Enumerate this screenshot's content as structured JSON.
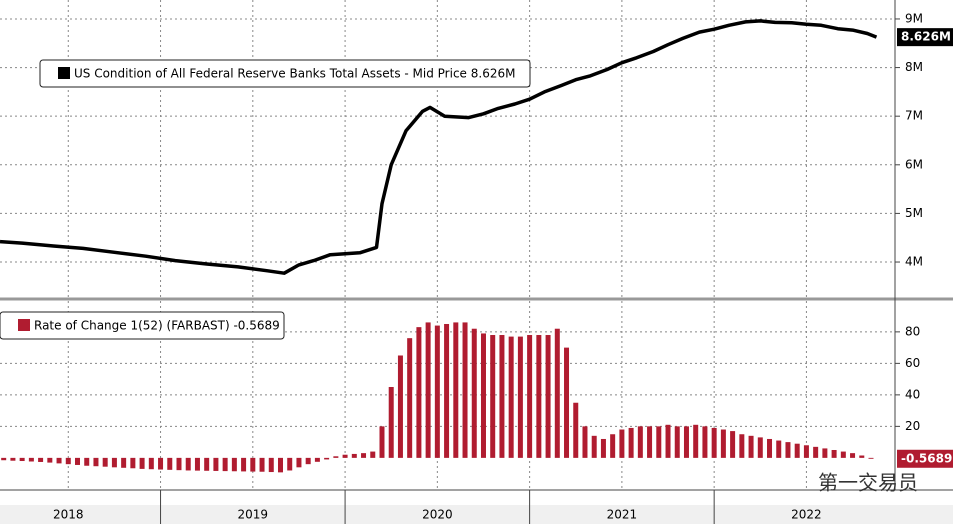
{
  "chart_data": [
    {
      "type": "line",
      "xlim": [
        2018.13,
        2022.98
      ],
      "ylim": [
        3.26,
        9.39
      ],
      "yticks": [
        {
          "value": 4,
          "label": "4M"
        },
        {
          "value": 5,
          "label": "5M"
        },
        {
          "value": 6,
          "label": "6M"
        },
        {
          "value": 7,
          "label": "7M"
        },
        {
          "value": 8,
          "label": "8M"
        },
        {
          "value": 9,
          "label": "9M"
        }
      ],
      "grid": true,
      "x": [
        2018.13,
        2018.25,
        2018.42,
        2018.58,
        2018.75,
        2018.92,
        2019.08,
        2019.25,
        2019.42,
        2019.58,
        2019.67,
        2019.75,
        2019.83,
        2019.92,
        2020.0,
        2020.08,
        2020.17,
        2020.2,
        2020.25,
        2020.33,
        2020.42,
        2020.46,
        2020.54,
        2020.67,
        2020.75,
        2020.83,
        2020.92,
        2021.0,
        2021.08,
        2021.17,
        2021.25,
        2021.33,
        2021.42,
        2021.5,
        2021.58,
        2021.67,
        2021.75,
        2021.83,
        2021.92,
        2022.0,
        2022.08,
        2022.17,
        2022.25,
        2022.33,
        2022.42,
        2022.5,
        2022.58,
        2022.67,
        2022.75,
        2022.83,
        2022.88
      ],
      "series": [
        {
          "name": "US Condition of All Federal Reserve Banks Total Assets - Mid Price 8.626M",
          "last_label": "8.626M",
          "color": "#000000",
          "values": [
            4.42,
            4.39,
            4.33,
            4.28,
            4.2,
            4.12,
            4.03,
            3.96,
            3.9,
            3.82,
            3.77,
            3.94,
            4.03,
            4.15,
            4.17,
            4.19,
            4.3,
            5.2,
            6.0,
            6.7,
            7.1,
            7.18,
            7.0,
            6.97,
            7.05,
            7.16,
            7.25,
            7.35,
            7.5,
            7.63,
            7.75,
            7.83,
            7.96,
            8.1,
            8.2,
            8.33,
            8.47,
            8.6,
            8.73,
            8.79,
            8.87,
            8.94,
            8.96,
            8.93,
            8.92,
            8.89,
            8.87,
            8.8,
            8.77,
            8.7,
            8.626
          ]
        }
      ]
    },
    {
      "type": "bar",
      "xlim": [
        2018.13,
        2022.98
      ],
      "ylim": [
        -20.4,
        99.6
      ],
      "yticks": [
        20,
        40,
        60,
        80
      ],
      "grid": true,
      "xticks": [
        {
          "value": 2018.5,
          "label": "2018"
        },
        {
          "value": 2019.5,
          "label": "2019"
        },
        {
          "value": 2020.5,
          "label": "2020"
        },
        {
          "value": 2021.5,
          "label": "2021"
        },
        {
          "value": 2022.5,
          "label": "2022"
        }
      ],
      "x": [
        2018.15,
        2018.2,
        2018.25,
        2018.3,
        2018.35,
        2018.4,
        2018.45,
        2018.5,
        2018.55,
        2018.6,
        2018.65,
        2018.7,
        2018.75,
        2018.8,
        2018.85,
        2018.9,
        2018.95,
        2019.0,
        2019.05,
        2019.1,
        2019.15,
        2019.2,
        2019.25,
        2019.3,
        2019.35,
        2019.4,
        2019.45,
        2019.5,
        2019.55,
        2019.6,
        2019.65,
        2019.7,
        2019.75,
        2019.8,
        2019.85,
        2019.9,
        2019.95,
        2020.0,
        2020.05,
        2020.1,
        2020.15,
        2020.2,
        2020.25,
        2020.3,
        2020.35,
        2020.4,
        2020.45,
        2020.5,
        2020.55,
        2020.6,
        2020.65,
        2020.7,
        2020.75,
        2020.8,
        2020.85,
        2020.9,
        2020.95,
        2021.0,
        2021.05,
        2021.1,
        2021.15,
        2021.2,
        2021.25,
        2021.3,
        2021.35,
        2021.4,
        2021.45,
        2021.5,
        2021.55,
        2021.6,
        2021.65,
        2021.7,
        2021.75,
        2021.8,
        2021.85,
        2021.9,
        2021.95,
        2022.0,
        2022.05,
        2022.1,
        2022.15,
        2022.2,
        2022.25,
        2022.3,
        2022.35,
        2022.4,
        2022.45,
        2022.5,
        2022.55,
        2022.6,
        2022.65,
        2022.7,
        2022.75,
        2022.8,
        2022.85
      ],
      "series": [
        {
          "name": "Rate of Change 1(52) (FARBAST) -0.5689",
          "last_label": "-0.5689",
          "color": "#b01c30",
          "values": [
            -1.5,
            -1.8,
            -2,
            -2.3,
            -2.6,
            -3,
            -3.5,
            -4,
            -4.5,
            -5,
            -5.3,
            -5.6,
            -6,
            -6.3,
            -6.6,
            -7,
            -7.2,
            -7.4,
            -7.6,
            -7.8,
            -8,
            -8.1,
            -8.2,
            -8.3,
            -8.4,
            -8.5,
            -8.6,
            -8.7,
            -8.8,
            -9,
            -9.2,
            -8,
            -6,
            -4,
            -2.5,
            -1,
            1,
            2,
            2.5,
            3,
            4,
            20,
            45,
            65,
            76,
            83,
            86,
            84,
            85,
            86,
            86,
            82,
            79,
            78,
            78,
            77,
            77,
            78,
            78,
            78,
            82,
            70,
            35,
            20,
            14,
            12,
            15,
            18,
            19,
            20,
            20,
            20,
            21,
            20,
            20,
            21,
            20,
            19,
            18,
            17,
            15,
            14,
            13,
            12,
            11,
            10,
            9,
            8,
            7,
            6,
            5,
            4,
            3,
            1.5,
            -0.5689
          ]
        }
      ]
    }
  ],
  "watermark": "第一交易员"
}
